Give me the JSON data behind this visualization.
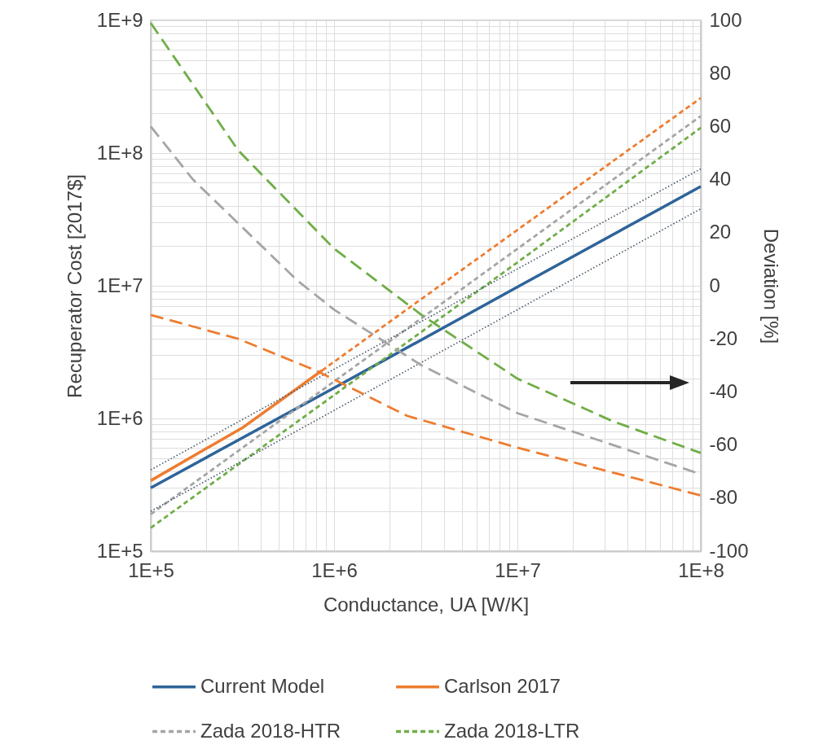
{
  "chart_data": {
    "type": "line",
    "xlabel": "Conductance, UA [W/K]",
    "ylabel": "Recuperator Cost [2017$]",
    "y2label": "Deviation [%]",
    "log": "xy",
    "grid": true,
    "legend": "bottom",
    "xlim": [
      100000,
      100000000
    ],
    "ylim": [
      100000,
      1000000000
    ],
    "y2lim": [
      -100,
      100
    ],
    "xticks": [
      {
        "value": 100000,
        "label": "1E+5"
      },
      {
        "value": 200000,
        "label": null
      },
      {
        "value": 300000,
        "label": null
      },
      {
        "value": 400000,
        "label": null
      },
      {
        "value": 500000,
        "label": null
      },
      {
        "value": 600000,
        "label": null
      },
      {
        "value": 700000,
        "label": null
      },
      {
        "value": 800000,
        "label": null
      },
      {
        "value": 900000,
        "label": null
      },
      {
        "value": 1000000,
        "label": "1E+6"
      },
      {
        "value": 2000000,
        "label": null
      },
      {
        "value": 3000000,
        "label": null
      },
      {
        "value": 4000000,
        "label": null
      },
      {
        "value": 5000000,
        "label": null
      },
      {
        "value": 6000000,
        "label": null
      },
      {
        "value": 7000000,
        "label": null
      },
      {
        "value": 8000000,
        "label": null
      },
      {
        "value": 9000000,
        "label": null
      },
      {
        "value": 10000000,
        "label": "1E+7"
      },
      {
        "value": 20000000,
        "label": null
      },
      {
        "value": 30000000,
        "label": null
      },
      {
        "value": 40000000,
        "label": null
      },
      {
        "value": 50000000,
        "label": null
      },
      {
        "value": 60000000,
        "label": null
      },
      {
        "value": 70000000,
        "label": null
      },
      {
        "value": 80000000,
        "label": null
      },
      {
        "value": 90000000,
        "label": null
      },
      {
        "value": 100000000,
        "label": "1E+8"
      }
    ],
    "yticks": [
      {
        "value": 100000,
        "label": "1E+5"
      },
      {
        "value": 200000,
        "label": null
      },
      {
        "value": 300000,
        "label": null
      },
      {
        "value": 400000,
        "label": null
      },
      {
        "value": 500000,
        "label": null
      },
      {
        "value": 600000,
        "label": null
      },
      {
        "value": 700000,
        "label": null
      },
      {
        "value": 800000,
        "label": null
      },
      {
        "value": 900000,
        "label": null
      },
      {
        "value": 1000000,
        "label": "1E+6"
      },
      {
        "value": 2000000,
        "label": null
      },
      {
        "value": 3000000,
        "label": null
      },
      {
        "value": 4000000,
        "label": null
      },
      {
        "value": 5000000,
        "label": null
      },
      {
        "value": 6000000,
        "label": null
      },
      {
        "value": 7000000,
        "label": null
      },
      {
        "value": 8000000,
        "label": null
      },
      {
        "value": 9000000,
        "label": null
      },
      {
        "value": 10000000,
        "label": "1E+7"
      },
      {
        "value": 20000000,
        "label": null
      },
      {
        "value": 30000000,
        "label": null
      },
      {
        "value": 40000000,
        "label": null
      },
      {
        "value": 50000000,
        "label": null
      },
      {
        "value": 60000000,
        "label": null
      },
      {
        "value": 70000000,
        "label": null
      },
      {
        "value": 80000000,
        "label": null
      },
      {
        "value": 90000000,
        "label": null
      },
      {
        "value": 100000000,
        "label": "1E+8"
      },
      {
        "value": 200000000,
        "label": null
      },
      {
        "value": 300000000,
        "label": null
      },
      {
        "value": 400000000,
        "label": null
      },
      {
        "value": 500000000,
        "label": null
      },
      {
        "value": 600000000,
        "label": null
      },
      {
        "value": 700000000,
        "label": null
      },
      {
        "value": 800000000,
        "label": null
      },
      {
        "value": 900000000,
        "label": null
      },
      {
        "value": 1000000000,
        "label": "1E+9"
      }
    ],
    "y2ticks": [
      -100,
      -80,
      -60,
      -40,
      -20,
      0,
      20,
      40,
      60,
      80,
      100
    ],
    "series": [
      {
        "name": "Current Model",
        "type": "line",
        "color": "#2e6499",
        "line_style": "solid",
        "x": [
          100000,
          1000000,
          10000000,
          100000000
        ],
        "values": [
          300000,
          1700000,
          9800000,
          56000000
        ]
      },
      {
        "name": "Carlson 2017",
        "type": "line",
        "color": "#ed7d31",
        "line_style": "solid",
        "x": [
          100000,
          320000,
          860000
        ],
        "values": [
          340000,
          860000,
          2300000
        ]
      },
      {
        "name": "Zada 2018-HTR",
        "type": "line",
        "color": "#a5a5a5",
        "line_style": "dashed",
        "x": [
          100000,
          1000000,
          10000000,
          100000000
        ],
        "values": [
          190000,
          1900000,
          19000000,
          190000000
        ]
      },
      {
        "name": "Zada 2018-LTR",
        "type": "line",
        "color": "#70ad47",
        "line_style": "dashed",
        "x": [
          100000,
          1000000,
          10000000,
          100000000
        ],
        "values": [
          150000,
          1500000,
          15000000,
          155000000
        ]
      },
      {
        "type": "line",
        "color": "#ed7d31",
        "line_style": "dashed",
        "x": [
          860000,
          100000000
        ],
        "values": [
          2300000,
          260000000
        ]
      },
      {
        "type": "line",
        "color": "#44546a",
        "line_style": "dotted",
        "x": [
          100000,
          1000000,
          10000000,
          100000000
        ],
        "values": [
          410000,
          2350000,
          13400000,
          76000000
        ]
      },
      {
        "type": "line",
        "color": "#44546a",
        "line_style": "dotted",
        "x": [
          100000,
          1000000,
          10000000,
          100000000
        ],
        "values": [
          200000,
          1150000,
          6600000,
          38000000
        ]
      },
      {
        "type": "line",
        "axis": "y2",
        "color": "#70ad47",
        "line_style": "longdash",
        "x": [
          100000,
          300000,
          1000000,
          3000000,
          10000000,
          33000000,
          100000000
        ],
        "values": [
          99,
          51,
          14,
          -11,
          -35,
          -51,
          -63
        ]
      },
      {
        "type": "line",
        "axis": "y2",
        "color": "#a5a5a5",
        "line_style": "longdash",
        "x": [
          100000,
          170000,
          630000,
          1000000,
          3000000,
          10000000,
          100000000
        ],
        "values": [
          60,
          40,
          2,
          -9,
          -30,
          -48,
          -71
        ]
      },
      {
        "type": "line",
        "axis": "y2",
        "color": "#ed7d31",
        "line_style": "longdash",
        "x": [
          100000,
          300000,
          800000,
          2500000,
          10000000,
          100000000
        ],
        "values": [
          -11,
          -20,
          -32,
          -49,
          -61,
          -79
        ]
      }
    ]
  }
}
